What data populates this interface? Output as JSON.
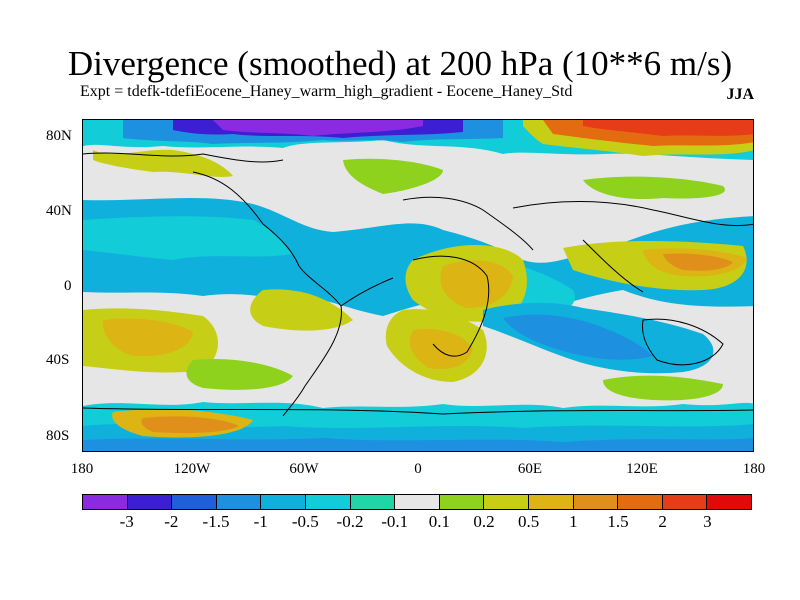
{
  "title": "Divergence (smoothed) at 200 hPa (10**6 m/s)",
  "subtitle": "Expt = tdefk-tdefiEocene_Haney_warm_high_gradient - Eocene_Haney_Std",
  "season": "JJA",
  "y_ticks": [
    "80N",
    "40N",
    "0",
    "40S",
    "80S"
  ],
  "x_ticks": [
    "180",
    "120W",
    "60W",
    "0",
    "60E",
    "120E",
    "180"
  ],
  "colorbar": {
    "colors": [
      "#8a2be2",
      "#3c1fd2",
      "#1f5fdc",
      "#1e90e0",
      "#0fb1dc",
      "#12ccd8",
      "#21d6a6",
      "#e6e6e6",
      "#8fd21e",
      "#c6cf16",
      "#dcb414",
      "#e0901a",
      "#e46c10",
      "#e73c18",
      "#e00a0a"
    ],
    "labels": [
      "-3",
      "-2",
      "-1.5",
      "-1",
      "-0.5",
      "-0.2",
      "-0.1",
      "0.1",
      "0.2",
      "0.5",
      "1",
      "1.5",
      "2",
      "3"
    ]
  }
}
